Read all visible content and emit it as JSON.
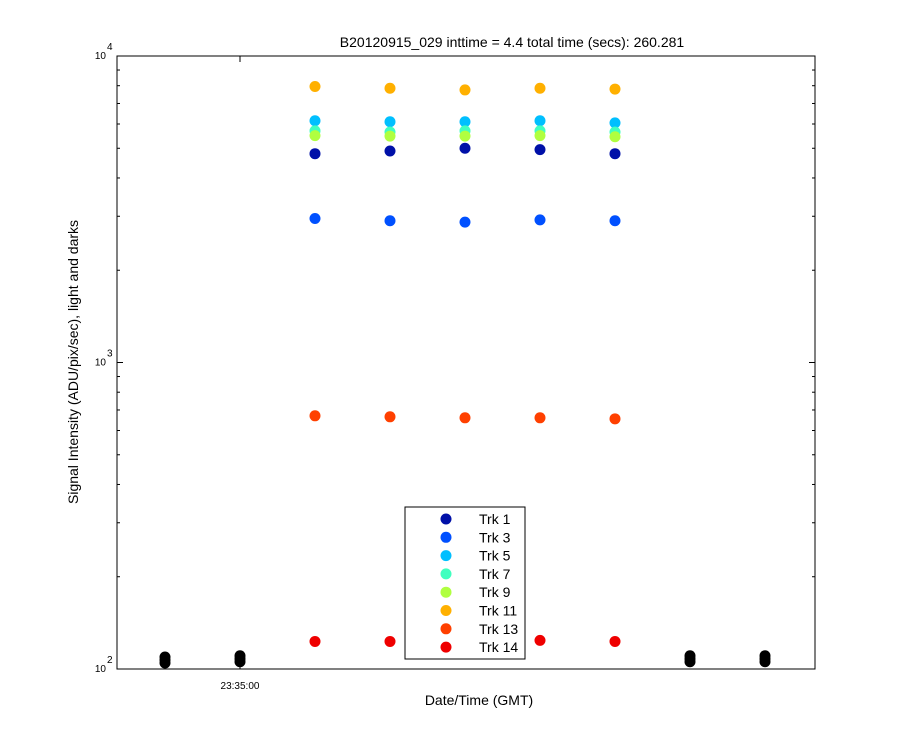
{
  "chart_data": {
    "type": "scatter",
    "title": "B20120915_029 inttime = 4.4 total time (secs): 260.281",
    "xlabel": "Date/Time (GMT)",
    "ylabel": "Signal Intensity (ADU/pix/sec), light and darks",
    "yscale": "log",
    "ylim": [
      100,
      10000
    ],
    "y_ticks": [
      {
        "value": 100,
        "base": "10",
        "exp": "2"
      },
      {
        "value": 1000,
        "base": "10",
        "exp": "3"
      },
      {
        "value": 10000,
        "base": "10",
        "exp": "4"
      }
    ],
    "x_ticks": [
      "23:35:00"
    ],
    "x_positions": [
      "t1",
      "t2",
      "t3",
      "t4",
      "t5",
      "t6",
      "t7",
      "t8",
      "t9"
    ],
    "grid": false,
    "legend_position": "bottom-center",
    "series": [
      {
        "name": "Trk 1",
        "color": "#0010a8",
        "values": [
          null,
          null,
          4800,
          4900,
          5000,
          4950,
          4800,
          null,
          null
        ]
      },
      {
        "name": "Trk 3",
        "color": "#0050ff",
        "values": [
          null,
          null,
          2950,
          2900,
          2870,
          2920,
          2900,
          null,
          null
        ]
      },
      {
        "name": "Trk 5",
        "color": "#00bfff",
        "values": [
          null,
          null,
          6150,
          6100,
          6100,
          6150,
          6050,
          null,
          null
        ]
      },
      {
        "name": "Trk 7",
        "color": "#40ffbf",
        "values": [
          null,
          null,
          5700,
          5650,
          5700,
          5700,
          5650,
          null,
          null
        ]
      },
      {
        "name": "Trk 9",
        "color": "#b0ff40",
        "values": [
          null,
          null,
          5500,
          5480,
          5480,
          5500,
          5450,
          null,
          null
        ]
      },
      {
        "name": "Trk 11",
        "color": "#ffb000",
        "values": [
          null,
          null,
          7950,
          7850,
          7750,
          7850,
          7800,
          null,
          null
        ]
      },
      {
        "name": "Trk 13",
        "color": "#ff4000",
        "values": [
          null,
          null,
          670,
          665,
          660,
          660,
          655,
          null,
          null
        ]
      },
      {
        "name": "Trk 14",
        "color": "#ef0000",
        "values": [
          null,
          null,
          123,
          123,
          null,
          124,
          123,
          null,
          null
        ]
      }
    ],
    "darks": {
      "color": "#000000",
      "values": [
        107,
        108,
        null,
        null,
        null,
        null,
        null,
        108,
        108
      ]
    }
  }
}
